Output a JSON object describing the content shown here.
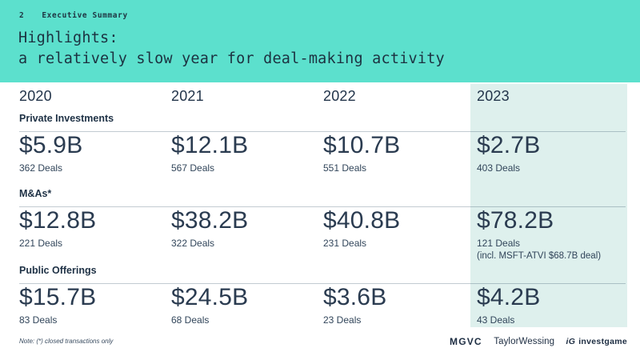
{
  "slide": {
    "number": "2",
    "section": "Executive Summary",
    "title_line1": "Highlights:",
    "title_line2": "a relatively slow year for deal-making activity",
    "footnote": "Note: (*) closed transactions only"
  },
  "colors": {
    "header_bg": "#5CE0CD",
    "highlight_bg": "#DEF0ED",
    "text_dark": "#1E3248"
  },
  "table": {
    "years": [
      "2020",
      "2021",
      "2022",
      "2023"
    ],
    "highlighted_year": "2023",
    "sections": [
      {
        "label": "Private Investments",
        "cells": [
          {
            "value": "$5.9B",
            "deals": "362 Deals"
          },
          {
            "value": "$12.1B",
            "deals": "567 Deals"
          },
          {
            "value": "$10.7B",
            "deals": "551 Deals"
          },
          {
            "value": "$2.7B",
            "deals": "403 Deals"
          }
        ]
      },
      {
        "label": "M&As*",
        "cells": [
          {
            "value": "$12.8B",
            "deals": "221 Deals"
          },
          {
            "value": "$38.2B",
            "deals": "322 Deals"
          },
          {
            "value": "$40.8B",
            "deals": "231 Deals"
          },
          {
            "value": "$78.2B",
            "deals": "121 Deals",
            "extra": "(incl. MSFT-ATVI $68.7B deal)"
          }
        ]
      },
      {
        "label": "Public Offerings",
        "cells": [
          {
            "value": "$15.7B",
            "deals": "83 Deals"
          },
          {
            "value": "$24.5B",
            "deals": "68 Deals"
          },
          {
            "value": "$3.6B",
            "deals": "23 Deals"
          },
          {
            "value": "$4.2B",
            "deals": "43 Deals"
          }
        ]
      }
    ]
  },
  "footer": {
    "logos": {
      "mgvc": "MGVC",
      "taylor_wessing": "TaylorWessing",
      "investgame_mark": "iG",
      "investgame_name": "investgame"
    }
  }
}
